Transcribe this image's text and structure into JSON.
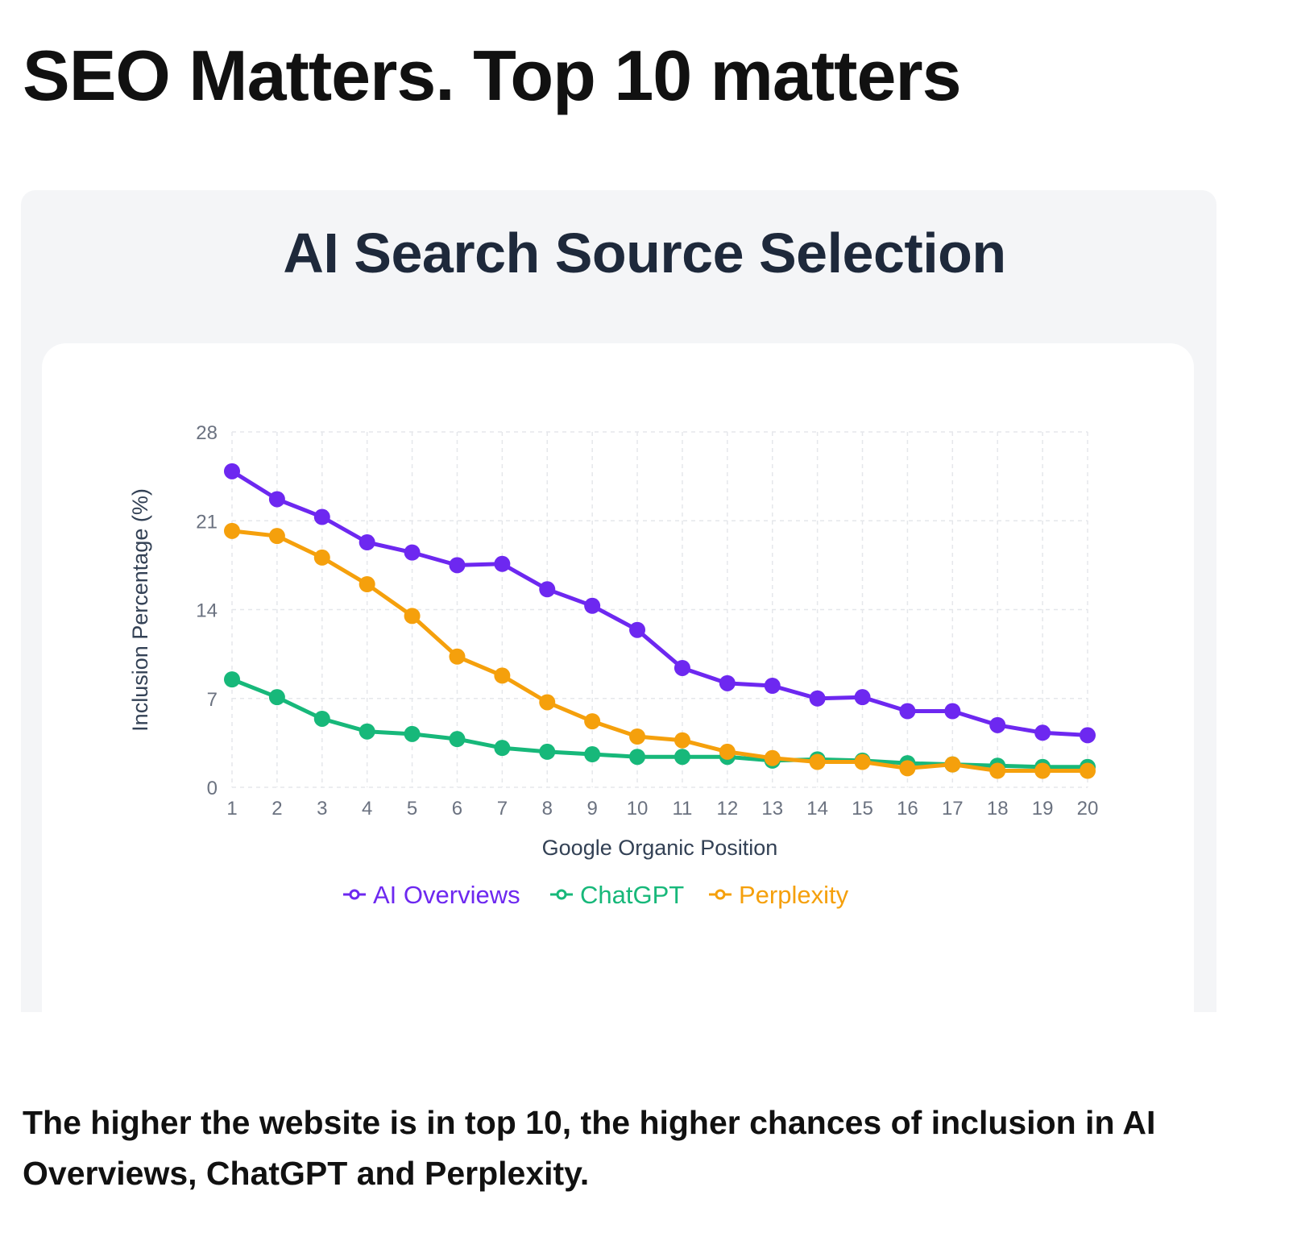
{
  "page": {
    "title": "SEO Matters. Top 10 matters",
    "caption": "The higher the website is in top 10, the higher chances of inclusion in AI Overviews, ChatGPT and Perplexity."
  },
  "chart_data": {
    "type": "line",
    "title": "AI Search Source Selection",
    "xlabel": "Google Organic Position",
    "ylabel": "Inclusion Percentage (%)",
    "x": [
      1,
      2,
      3,
      4,
      5,
      6,
      7,
      8,
      9,
      10,
      11,
      12,
      13,
      14,
      15,
      16,
      17,
      18,
      19,
      20
    ],
    "ylim": [
      0,
      28
    ],
    "yticks": [
      0,
      7,
      14,
      21,
      28
    ],
    "grid": true,
    "legend": "bottom-center",
    "series": [
      {
        "name": "AI Overviews",
        "color": "#6d28f0",
        "values": [
          24.9,
          22.7,
          21.3,
          19.3,
          18.5,
          17.5,
          17.6,
          15.6,
          14.3,
          12.4,
          9.4,
          8.2,
          8.0,
          7.0,
          7.1,
          6.0,
          6.0,
          4.9,
          4.3,
          4.1
        ]
      },
      {
        "name": "ChatGPT",
        "color": "#17b87a",
        "values": [
          8.5,
          7.1,
          5.4,
          4.4,
          4.2,
          3.8,
          3.1,
          2.8,
          2.6,
          2.4,
          2.4,
          2.4,
          2.1,
          2.2,
          2.1,
          1.9,
          1.8,
          1.7,
          1.6,
          1.6
        ]
      },
      {
        "name": "Perplexity",
        "color": "#f5a00c",
        "values": [
          20.2,
          19.8,
          18.1,
          16.0,
          13.5,
          10.3,
          8.8,
          6.7,
          5.2,
          4.0,
          3.7,
          2.8,
          2.3,
          2.0,
          2.0,
          1.5,
          1.8,
          1.3,
          1.3,
          1.3
        ]
      }
    ]
  }
}
